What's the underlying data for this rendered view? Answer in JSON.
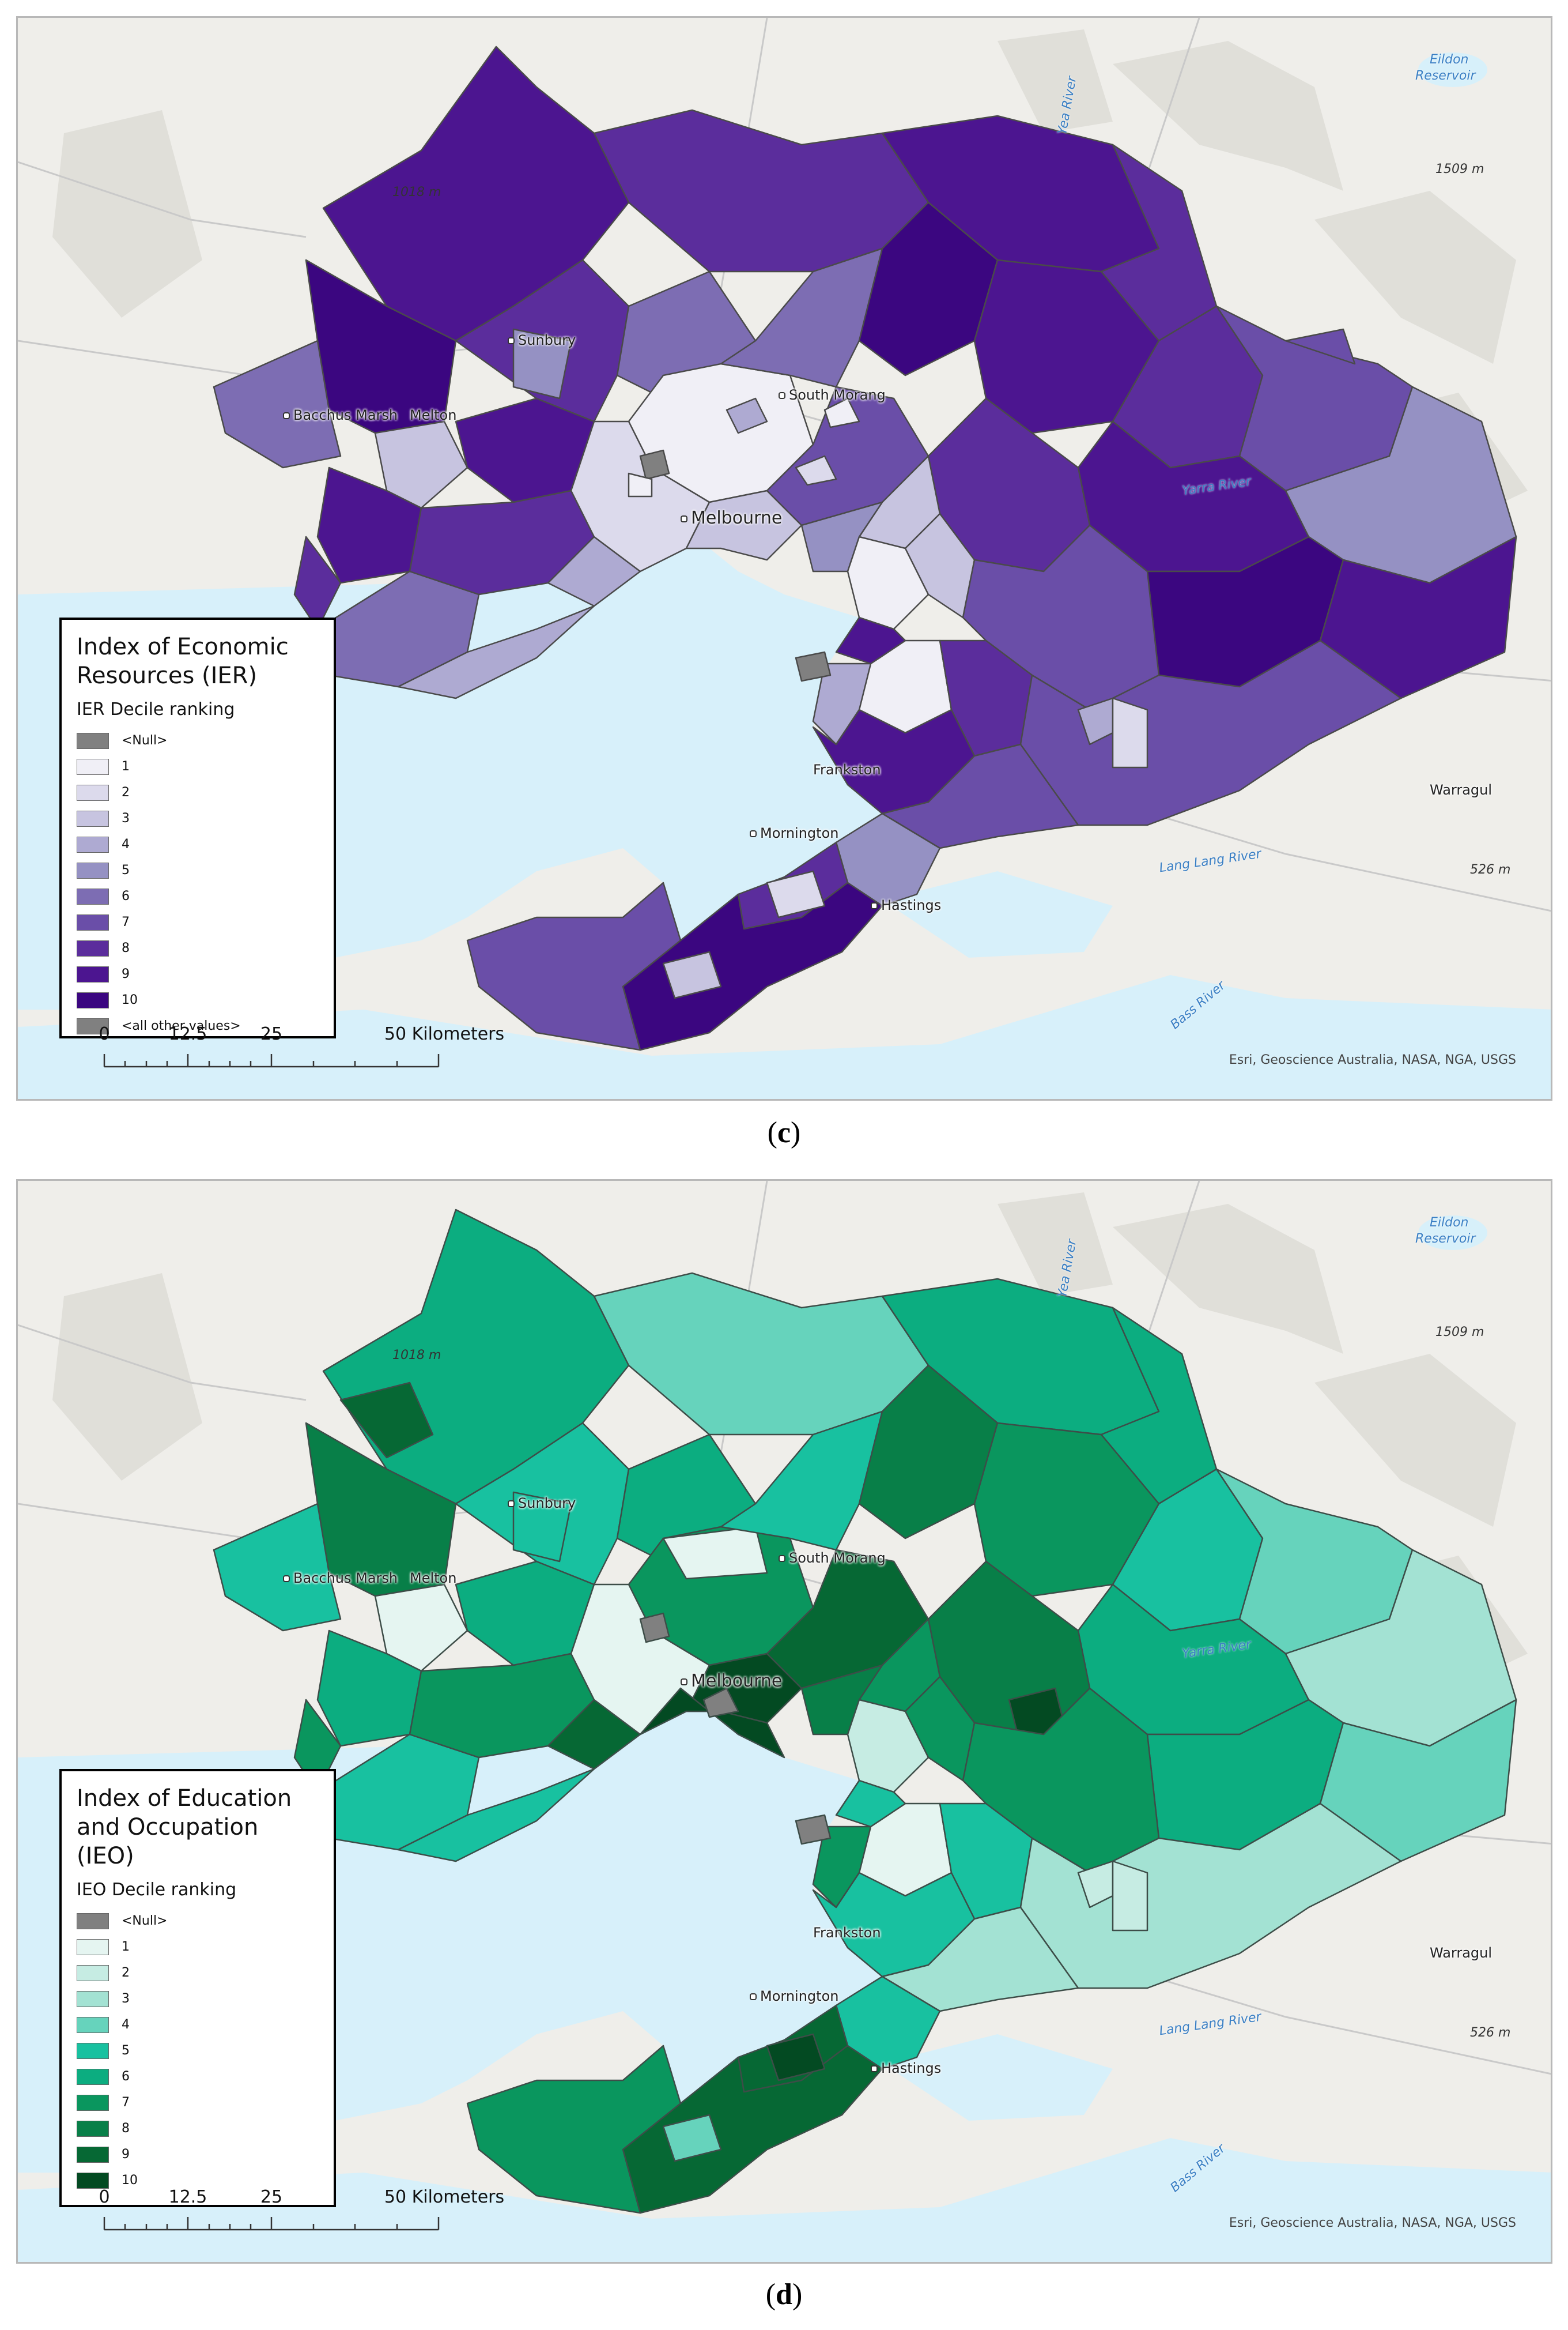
{
  "panels": [
    {
      "id": "c",
      "caption": "c",
      "legend": {
        "title_lines": [
          "Index of Economic",
          "Resources (IER)"
        ],
        "subtitle": "IER Decile ranking",
        "classes": [
          {
            "label": "<Null>",
            "color": "#808080"
          },
          {
            "label": "1",
            "color": "#f0eff6"
          },
          {
            "label": "2",
            "color": "#dcdaec"
          },
          {
            "label": "3",
            "color": "#c7c4e0"
          },
          {
            "label": "4",
            "color": "#aeaad2"
          },
          {
            "label": "5",
            "color": "#9591c3"
          },
          {
            "label": "6",
            "color": "#7d6db3"
          },
          {
            "label": "7",
            "color": "#6a4ea8"
          },
          {
            "label": "8",
            "color": "#5b2d9c"
          },
          {
            "label": "9",
            "color": "#4c1590"
          },
          {
            "label": "10",
            "color": "#3b0680"
          },
          {
            "label": "<all other values>",
            "color": "#808080"
          }
        ]
      }
    },
    {
      "id": "d",
      "caption": "d",
      "legend": {
        "title_lines": [
          "Index of Education",
          "and Occupation",
          "(IEO)"
        ],
        "subtitle": "IEO Decile ranking",
        "classes": [
          {
            "label": "<Null>",
            "color": "#808080"
          },
          {
            "label": "1",
            "color": "#e5f5f1"
          },
          {
            "label": "2",
            "color": "#c6ece3"
          },
          {
            "label": "3",
            "color": "#a3e2d3"
          },
          {
            "label": "4",
            "color": "#66d3bc"
          },
          {
            "label": "5",
            "color": "#18c1a0"
          },
          {
            "label": "6",
            "color": "#0cad80"
          },
          {
            "label": "7",
            "color": "#0a965e"
          },
          {
            "label": "8",
            "color": "#087f48"
          },
          {
            "label": "9",
            "color": "#066834"
          },
          {
            "label": "10",
            "color": "#034a22"
          }
        ]
      }
    }
  ],
  "scale": {
    "labels": [
      "0",
      "12.5",
      "25",
      "50 Kilometers"
    ]
  },
  "credit": "Esri, Geoscience Australia, NASA, NGA, USGS",
  "places": {
    "sunbury": "Sunbury",
    "bacchus_marsh": "Bacchus Marsh",
    "melton": "Melton",
    "south_morang": "South Morang",
    "melbourne": "Melbourne",
    "frankston": "Frankston",
    "mornington": "Mornington",
    "hastings": "Hastings",
    "warragul": "Warragul"
  },
  "water_labels": {
    "eildon_1": "Eildon",
    "eildon_2": "Reservoir",
    "yea_river": "Yea River",
    "yarra_river": "Yarra River",
    "lang_lang": "Lang Lang River",
    "bass_river": "Bass River"
  },
  "elevations": {
    "e1": "1018 m",
    "e2": "1509 m",
    "e3": "526 m"
  },
  "colors": {
    "water": "#d7f0fa",
    "land": "#efeeea",
    "region_border": "#4a4a4a"
  }
}
